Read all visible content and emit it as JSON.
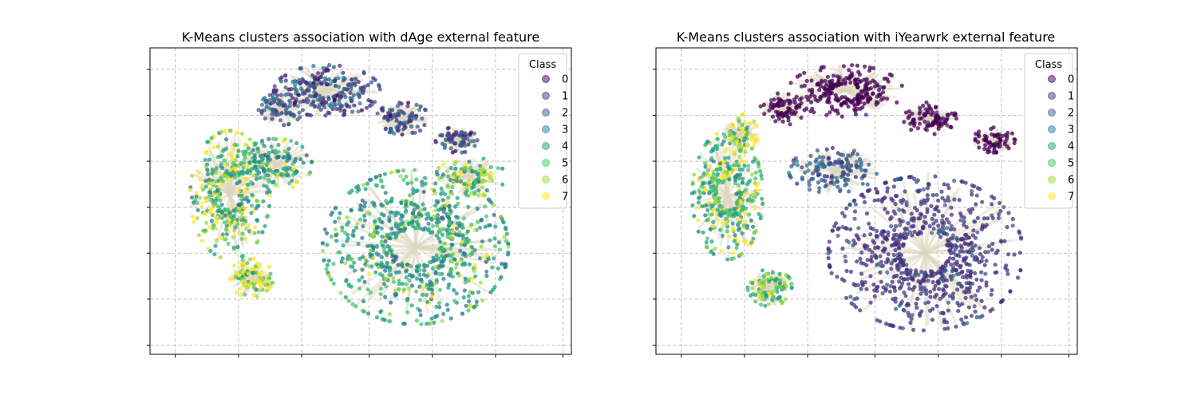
{
  "chart_data": [
    {
      "type": "scatter",
      "title": "K-Means clusters association with dAge external feature",
      "xlabel": "",
      "ylabel": "",
      "grid": true,
      "legend": {
        "title": "Class",
        "position": "top-right",
        "entries": [
          "0",
          "1",
          "2",
          "3",
          "4",
          "5",
          "6",
          "7"
        ]
      },
      "series": [
        {
          "name": "0",
          "color": "#440154"
        },
        {
          "name": "1",
          "color": "#46327e"
        },
        {
          "name": "2",
          "color": "#365c8d"
        },
        {
          "name": "3",
          "color": "#277f8e"
        },
        {
          "name": "4",
          "color": "#1fa187"
        },
        {
          "name": "5",
          "color": "#4ac16d"
        },
        {
          "name": "6",
          "color": "#a0da39"
        },
        {
          "name": "7",
          "color": "#fde725"
        }
      ],
      "clusters": [
        {
          "cx": 0.42,
          "cy": 0.86,
          "rx": 0.12,
          "ry": 0.08,
          "mix": [
            0.1,
            0.45,
            0.35,
            0.1,
            0,
            0,
            0,
            0
          ],
          "n": 700
        },
        {
          "cx": 0.31,
          "cy": 0.8,
          "rx": 0.05,
          "ry": 0.05,
          "mix": [
            0.05,
            0.25,
            0.5,
            0.2,
            0,
            0,
            0,
            0
          ],
          "n": 220
        },
        {
          "cx": 0.6,
          "cy": 0.77,
          "rx": 0.06,
          "ry": 0.05,
          "mix": [
            0.05,
            0.5,
            0.35,
            0.1,
            0,
            0,
            0,
            0
          ],
          "n": 260
        },
        {
          "cx": 0.73,
          "cy": 0.7,
          "rx": 0.05,
          "ry": 0.04,
          "mix": [
            0.05,
            0.5,
            0.35,
            0.1,
            0,
            0,
            0,
            0
          ],
          "n": 200
        },
        {
          "cx": 0.19,
          "cy": 0.52,
          "rx": 0.09,
          "ry": 0.2,
          "mix": [
            0,
            0,
            0,
            0.2,
            0.2,
            0.2,
            0.15,
            0.25
          ],
          "n": 1100
        },
        {
          "cx": 0.3,
          "cy": 0.62,
          "rx": 0.08,
          "ry": 0.08,
          "mix": [
            0,
            0,
            0.05,
            0.25,
            0.3,
            0.2,
            0.1,
            0.1
          ],
          "n": 420
        },
        {
          "cx": 0.63,
          "cy": 0.35,
          "rx": 0.21,
          "ry": 0.24,
          "mix": [
            0,
            0,
            0.05,
            0.3,
            0.3,
            0.2,
            0.1,
            0.05
          ],
          "n": 2300
        },
        {
          "cx": 0.76,
          "cy": 0.58,
          "rx": 0.08,
          "ry": 0.06,
          "mix": [
            0,
            0,
            0,
            0.1,
            0.2,
            0.2,
            0.3,
            0.2
          ],
          "n": 300
        },
        {
          "cx": 0.24,
          "cy": 0.25,
          "rx": 0.05,
          "ry": 0.06,
          "mix": [
            0,
            0,
            0,
            0.05,
            0.1,
            0.2,
            0.2,
            0.45
          ],
          "n": 300
        }
      ]
    },
    {
      "type": "scatter",
      "title": "K-Means clusters association with iYearwrk external feature",
      "xlabel": "",
      "ylabel": "",
      "grid": true,
      "legend": {
        "title": "Class",
        "position": "top-right",
        "entries": [
          "0",
          "1",
          "2",
          "3",
          "4",
          "5",
          "6",
          "7"
        ]
      },
      "series": [
        {
          "name": "0",
          "color": "#440154"
        },
        {
          "name": "1",
          "color": "#46327e"
        },
        {
          "name": "2",
          "color": "#365c8d"
        },
        {
          "name": "3",
          "color": "#277f8e"
        },
        {
          "name": "4",
          "color": "#1fa187"
        },
        {
          "name": "5",
          "color": "#4ac16d"
        },
        {
          "name": "6",
          "color": "#a0da39"
        },
        {
          "name": "7",
          "color": "#fde725"
        }
      ],
      "clusters": [
        {
          "cx": 0.45,
          "cy": 0.86,
          "rx": 0.13,
          "ry": 0.08,
          "mix": [
            0.95,
            0.05,
            0,
            0,
            0,
            0,
            0,
            0
          ],
          "n": 700
        },
        {
          "cx": 0.3,
          "cy": 0.8,
          "rx": 0.05,
          "ry": 0.05,
          "mix": [
            0.95,
            0.05,
            0,
            0,
            0,
            0,
            0,
            0
          ],
          "n": 220
        },
        {
          "cx": 0.65,
          "cy": 0.77,
          "rx": 0.06,
          "ry": 0.05,
          "mix": [
            0.95,
            0.05,
            0,
            0,
            0,
            0,
            0,
            0
          ],
          "n": 260
        },
        {
          "cx": 0.8,
          "cy": 0.7,
          "rx": 0.05,
          "ry": 0.04,
          "mix": [
            0.95,
            0.05,
            0,
            0,
            0,
            0,
            0,
            0
          ],
          "n": 200
        },
        {
          "cx": 0.17,
          "cy": 0.52,
          "rx": 0.08,
          "ry": 0.2,
          "mix": [
            0,
            0,
            0,
            0.1,
            0.25,
            0.3,
            0.15,
            0.2
          ],
          "n": 1100
        },
        {
          "cx": 0.42,
          "cy": 0.6,
          "rx": 0.1,
          "ry": 0.07,
          "mix": [
            0,
            0.3,
            0.55,
            0.15,
            0,
            0,
            0,
            0
          ],
          "n": 420
        },
        {
          "cx": 0.64,
          "cy": 0.33,
          "rx": 0.22,
          "ry": 0.24,
          "mix": [
            0,
            0.85,
            0.15,
            0,
            0,
            0,
            0,
            0
          ],
          "n": 2300
        },
        {
          "cx": 0.2,
          "cy": 0.72,
          "rx": 0.04,
          "ry": 0.06,
          "mix": [
            0,
            0,
            0,
            0.05,
            0.1,
            0.15,
            0.2,
            0.5
          ],
          "n": 200
        },
        {
          "cx": 0.27,
          "cy": 0.22,
          "rx": 0.05,
          "ry": 0.06,
          "mix": [
            0,
            0,
            0,
            0.1,
            0.25,
            0.3,
            0.25,
            0.1
          ],
          "n": 300
        }
      ]
    }
  ]
}
